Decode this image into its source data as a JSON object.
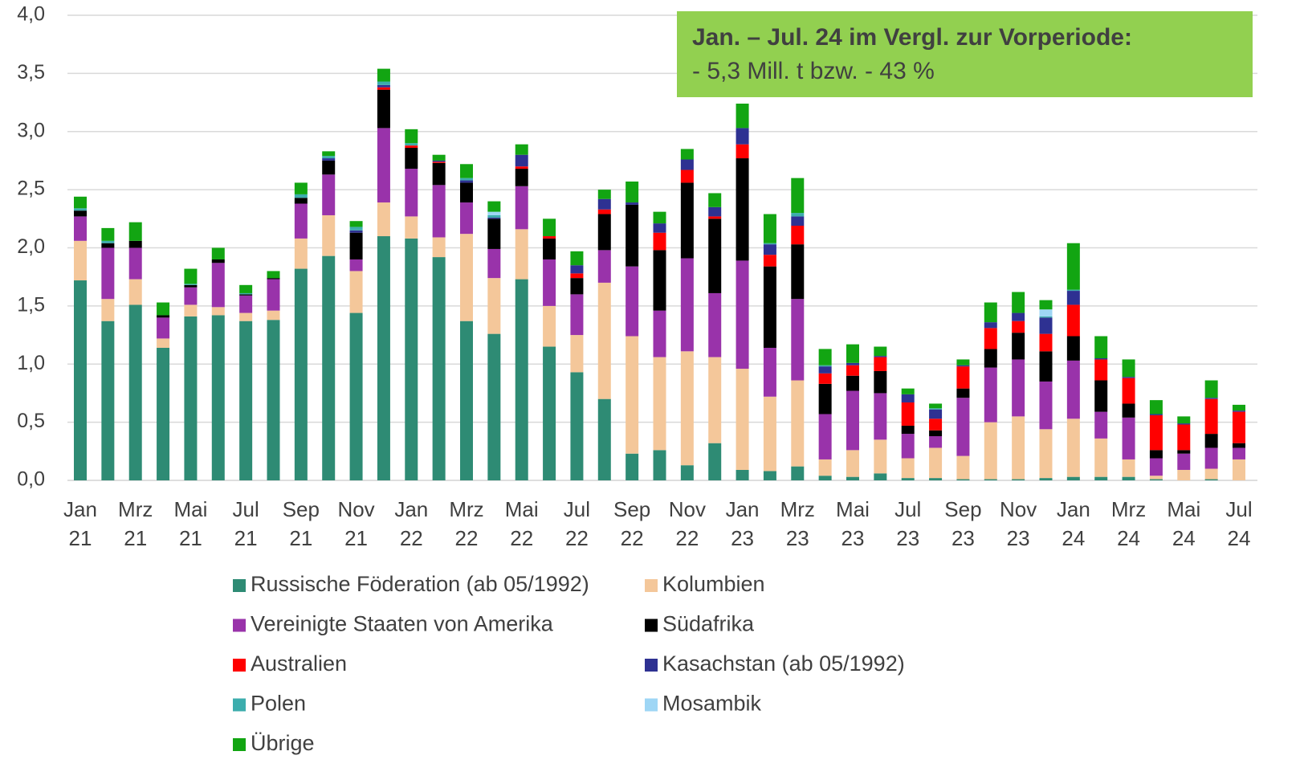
{
  "chart_data": {
    "type": "stacked_bar",
    "categories": [
      "Jan 21",
      null,
      "Mrz 21",
      null,
      "Mai 21",
      null,
      "Jul 21",
      null,
      "Sep 21",
      null,
      "Nov 21",
      null,
      "Jan 22",
      null,
      "Mrz 22",
      null,
      "Mai 22",
      null,
      "Jul 22",
      null,
      "Sep 22",
      null,
      "Nov 22",
      null,
      "Jan 23",
      null,
      "Mrz 23",
      null,
      "Mai 23",
      null,
      "Jul 23",
      null,
      "Sep 23",
      null,
      "Nov 23",
      null,
      "Jan 24",
      null,
      "Mrz 24",
      null,
      "Mai 24",
      null,
      "Jul 24"
    ],
    "series": [
      {
        "name": "Russische Föderation (ab 05/1992)",
        "color": "#2e8b74",
        "values": [
          1.72,
          1.37,
          1.51,
          1.14,
          1.41,
          1.42,
          1.37,
          1.38,
          1.82,
          1.93,
          1.44,
          2.1,
          2.08,
          1.92,
          1.37,
          1.26,
          1.73,
          1.15,
          0.93,
          0.7,
          0.23,
          0.26,
          0.13,
          0.32,
          0.09,
          0.08,
          0.12,
          0.04,
          0.03,
          0.06,
          0.02,
          0.02,
          0.01,
          0.01,
          0.01,
          0.02,
          0.03,
          0.03,
          0.03,
          0.01,
          0,
          0.01,
          0
        ]
      },
      {
        "name": "Kolumbien",
        "color": "#f4c79a",
        "values": [
          0.34,
          0.19,
          0.22,
          0.08,
          0.1,
          0.07,
          0.07,
          0.08,
          0.26,
          0.35,
          0.36,
          0.29,
          0.19,
          0.17,
          0.75,
          0.48,
          0.43,
          0.35,
          0.32,
          1.0,
          1.01,
          0.8,
          0.98,
          0.74,
          0.87,
          0.64,
          0.74,
          0.14,
          0.23,
          0.29,
          0.17,
          0.26,
          0.2,
          0.49,
          0.54,
          0.42,
          0.5,
          0.33,
          0.15,
          0.03,
          0.09,
          0.09,
          0.18
        ]
      },
      {
        "name": "Vereinigte Staaten von Amerika",
        "color": "#9933aa",
        "values": [
          0.21,
          0.44,
          0.27,
          0.18,
          0.15,
          0.38,
          0.15,
          0.27,
          0.3,
          0.35,
          0.1,
          0.64,
          0.41,
          0.45,
          0.27,
          0.25,
          0.37,
          0.4,
          0.35,
          0.28,
          0.6,
          0.4,
          0.8,
          0.55,
          0.93,
          0.42,
          0.7,
          0.39,
          0.51,
          0.4,
          0.21,
          0.1,
          0.5,
          0.47,
          0.49,
          0.41,
          0.5,
          0.23,
          0.36,
          0.15,
          0.14,
          0.18,
          0.1
        ]
      },
      {
        "name": "Südafrika",
        "color": "#000000",
        "values": [
          0.05,
          0.04,
          0.06,
          0.02,
          0.02,
          0.03,
          0.01,
          0.01,
          0.05,
          0.12,
          0.23,
          0.33,
          0.18,
          0.19,
          0.17,
          0.26,
          0.15,
          0.18,
          0.14,
          0.31,
          0.53,
          0.52,
          0.65,
          0.64,
          0.88,
          0.7,
          0.47,
          0.26,
          0.13,
          0.19,
          0.07,
          0.05,
          0.08,
          0.16,
          0.23,
          0.26,
          0.21,
          0.27,
          0.12,
          0.07,
          0.03,
          0.12,
          0.04
        ]
      },
      {
        "name": "Australien",
        "color": "#ff0000",
        "values": [
          0,
          0,
          0,
          0,
          0,
          0,
          0,
          0,
          0,
          0,
          0,
          0.02,
          0.02,
          0.01,
          0,
          0,
          0.02,
          0.02,
          0.04,
          0.04,
          0,
          0.15,
          0.11,
          0.02,
          0.12,
          0.1,
          0.16,
          0.09,
          0.09,
          0.12,
          0.2,
          0.1,
          0.19,
          0.18,
          0.1,
          0.15,
          0.27,
          0.18,
          0.22,
          0.3,
          0.22,
          0.3,
          0.27
        ]
      },
      {
        "name": "Kasachstan (ab 05/1992)",
        "color": "#2e3192",
        "values": [
          0,
          0,
          0,
          0,
          0,
          0,
          0,
          0,
          0,
          0.02,
          0.02,
          0.02,
          0,
          0.01,
          0.02,
          0.01,
          0.1,
          0,
          0.07,
          0.09,
          0.02,
          0.08,
          0.09,
          0.08,
          0.14,
          0.09,
          0.08,
          0.06,
          0.02,
          0.01,
          0.07,
          0.08,
          0.01,
          0.05,
          0.07,
          0.14,
          0.12,
          0.01,
          0.01,
          0.01,
          0.01,
          0.01,
          0.01
        ]
      },
      {
        "name": "Polen",
        "color": "#3cadad",
        "values": [
          0.02,
          0.02,
          0,
          0,
          0.01,
          0,
          0.01,
          0,
          0.03,
          0.02,
          0.03,
          0.03,
          0.02,
          0,
          0.02,
          0.02,
          0,
          0,
          0,
          0,
          0,
          0,
          0,
          0,
          0,
          0.01,
          0.03,
          0.01,
          0,
          0,
          0,
          0.01,
          0,
          0,
          0,
          0.01,
          0.01,
          0,
          0,
          0,
          0,
          0,
          0
        ]
      },
      {
        "name": "Mosambik",
        "color": "#9ed6f5",
        "values": [
          0,
          0,
          0,
          0,
          0,
          0,
          0,
          0,
          0,
          0,
          0,
          0,
          0,
          0,
          0,
          0.03,
          0,
          0,
          0,
          0,
          0,
          0,
          0,
          0,
          0,
          0,
          0,
          0,
          0,
          0,
          0,
          0,
          0,
          0,
          0,
          0.06,
          0,
          0,
          0,
          0,
          0,
          0,
          0
        ]
      },
      {
        "name": "Übrige",
        "color": "#12a512",
        "values": [
          0.1,
          0.11,
          0.16,
          0.11,
          0.13,
          0.1,
          0.07,
          0.06,
          0.1,
          0.04,
          0.05,
          0.11,
          0.12,
          0.05,
          0.12,
          0.09,
          0.09,
          0.15,
          0.12,
          0.08,
          0.18,
          0.1,
          0.09,
          0.12,
          0.21,
          0.25,
          0.3,
          0.14,
          0.16,
          0.08,
          0.05,
          0.04,
          0.05,
          0.17,
          0.18,
          0.08,
          0.4,
          0.19,
          0.15,
          0.12,
          0.06,
          0.15,
          0.05
        ]
      }
    ],
    "ylim": [
      0,
      4
    ],
    "yticks": [
      {
        "value": 0,
        "label": "0,0"
      },
      {
        "value": 0.5,
        "label": "0,5"
      },
      {
        "value": 1,
        "label": "1,0"
      },
      {
        "value": 1.5,
        "label": "1,5"
      },
      {
        "value": 2,
        "label": "2,0"
      },
      {
        "value": 2.5,
        "label": "2,5"
      },
      {
        "value": 3,
        "label": "3,0"
      },
      {
        "value": 3.5,
        "label": "3,5"
      },
      {
        "value": 4,
        "label": "4,0"
      }
    ],
    "grid": true,
    "legend": "bottom",
    "annotation": {
      "title": "Jan. – Jul. 24 im Vergl. zur Vorperiode:",
      "text": "- 5,3 Mill. t bzw. - 43 %",
      "color": "#92d050"
    }
  }
}
